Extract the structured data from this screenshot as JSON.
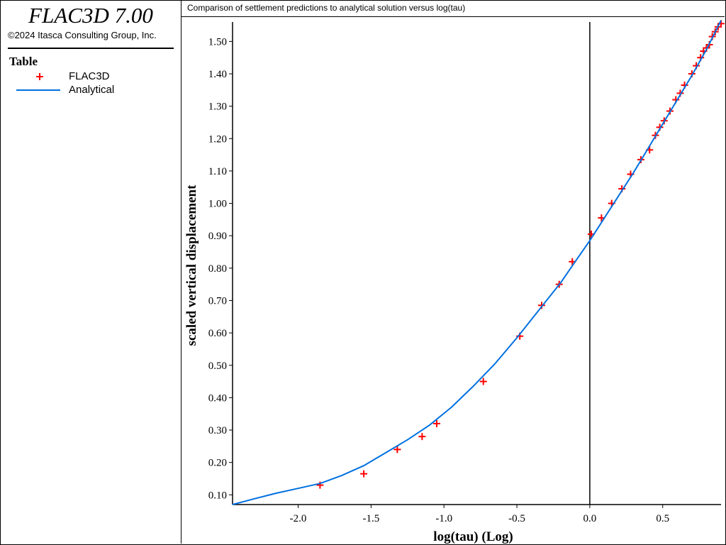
{
  "app": {
    "title": "FLAC3D 7.00",
    "copyright": "©2024 Itasca Consulting Group, Inc."
  },
  "legend": {
    "heading": "Table",
    "items": [
      {
        "label": "FLAC3D",
        "marker": "plus",
        "color": "#ff0000"
      },
      {
        "label": "Analytical",
        "marker": "line",
        "color": "#0070e0"
      }
    ]
  },
  "chart_data": {
    "type": "scatter",
    "title": "Comparison of settlement predictions to analytical solution versus log(tau)",
    "xlabel": "log(tau) (Log)",
    "ylabel": "scaled vertical displacement",
    "xlim": [
      -2.45,
      0.9
    ],
    "ylim": [
      0.07,
      1.56
    ],
    "xticks": [
      -2.0,
      -1.5,
      -1.0,
      -0.5,
      0.0,
      0.5
    ],
    "xtick_labels": [
      "-2.0",
      "-1.5",
      "-1.0",
      "-0.5",
      "0.0",
      "0.5"
    ],
    "yticks": [
      0.1,
      0.2,
      0.3,
      0.4,
      0.5,
      0.6,
      0.7,
      0.8,
      0.9,
      1.0,
      1.1,
      1.2,
      1.3,
      1.4,
      1.5
    ],
    "ytick_labels": [
      "0.10",
      "0.20",
      "0.30",
      "0.40",
      "0.50",
      "0.60",
      "0.70",
      "0.80",
      "0.90",
      "1.00",
      "1.10",
      "1.20",
      "1.30",
      "1.40",
      "1.50"
    ],
    "grid": false,
    "reference_line_x": 0.0,
    "series": [
      {
        "name": "FLAC3D",
        "marker": "plus",
        "color": "#ff0000",
        "x": [
          -1.85,
          -1.55,
          -1.32,
          -1.15,
          -1.05,
          -0.73,
          -0.48,
          -0.33,
          -0.21,
          -0.12,
          0.01,
          0.08,
          0.15,
          0.22,
          0.28,
          0.35,
          0.41,
          0.45,
          0.48,
          0.51,
          0.55,
          0.59,
          0.62,
          0.65,
          0.7,
          0.73,
          0.76,
          0.78,
          0.8,
          0.82,
          0.84,
          0.86,
          0.88,
          0.9
        ],
        "y": [
          0.13,
          0.165,
          0.24,
          0.28,
          0.32,
          0.45,
          0.59,
          0.685,
          0.75,
          0.82,
          0.905,
          0.955,
          1.0,
          1.045,
          1.09,
          1.135,
          1.165,
          1.21,
          1.235,
          1.255,
          1.285,
          1.32,
          1.34,
          1.365,
          1.4,
          1.425,
          1.45,
          1.47,
          1.48,
          1.49,
          1.515,
          1.53,
          1.545,
          1.555
        ]
      },
      {
        "name": "Analytical",
        "marker": "line",
        "color": "#0070e0",
        "x": [
          -2.45,
          -2.3,
          -2.15,
          -2.0,
          -1.85,
          -1.7,
          -1.55,
          -1.4,
          -1.25,
          -1.1,
          -0.95,
          -0.8,
          -0.65,
          -0.5,
          -0.35,
          -0.2,
          -0.1,
          0.0,
          0.1,
          0.2,
          0.3,
          0.4,
          0.5,
          0.6,
          0.7,
          0.75,
          0.8,
          0.85,
          0.9
        ],
        "y": [
          0.07,
          0.088,
          0.105,
          0.12,
          0.135,
          0.16,
          0.19,
          0.23,
          0.27,
          0.315,
          0.37,
          0.435,
          0.505,
          0.585,
          0.67,
          0.755,
          0.82,
          0.885,
          0.955,
          1.025,
          1.095,
          1.17,
          1.245,
          1.32,
          1.395,
          1.435,
          1.475,
          1.52,
          1.565
        ]
      }
    ]
  }
}
